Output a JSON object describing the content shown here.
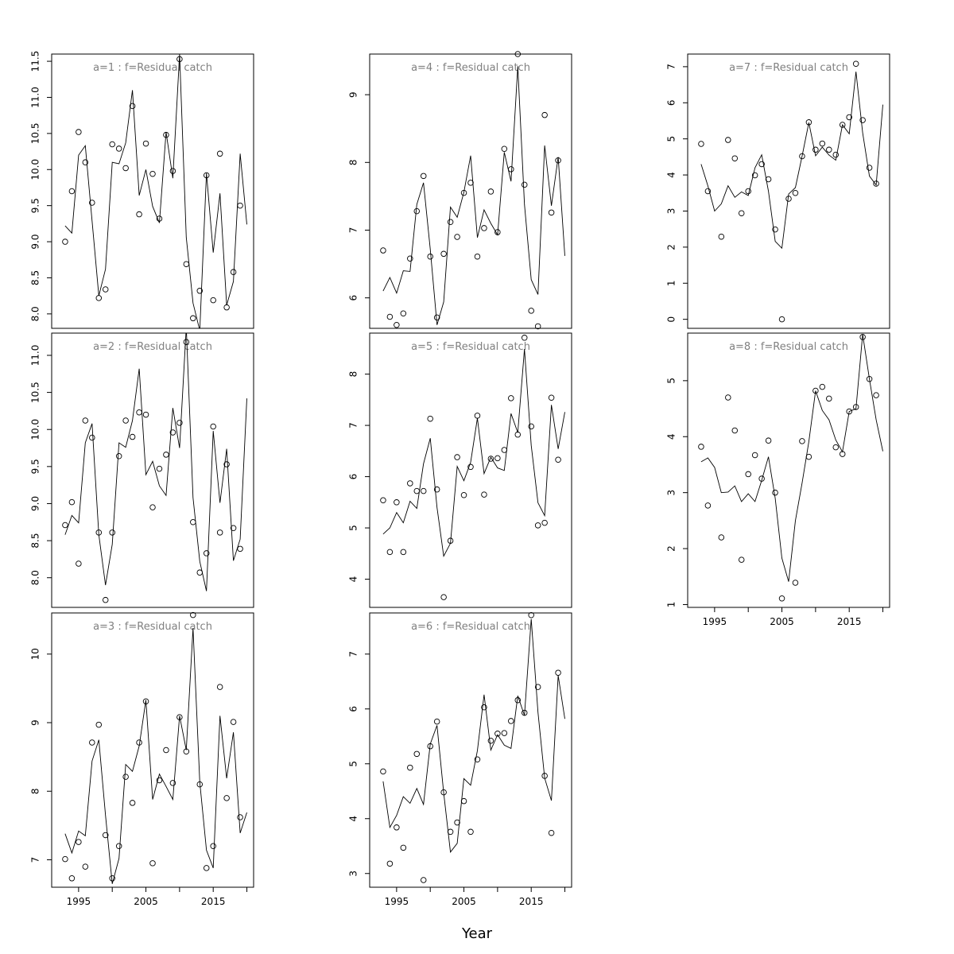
{
  "figure": {
    "xlabel": "Year"
  },
  "chart_data": [
    {
      "type": "line",
      "panel": "a1",
      "title": "a=1  :  f=Residual catch",
      "x_points": [
        1993,
        1994,
        1995,
        1996,
        1997,
        1998,
        1999,
        2000,
        2001,
        2002,
        2003,
        2004,
        2005,
        2006,
        2007,
        2008,
        2009,
        2010,
        2011,
        2012,
        2013,
        2014,
        2015,
        2016,
        2017,
        2018,
        2019
      ],
      "points": [
        9.0,
        9.7,
        10.52,
        10.1,
        9.54,
        8.22,
        8.34,
        10.35,
        10.29,
        10.02,
        10.88,
        9.38,
        10.36,
        9.94,
        9.32,
        10.48,
        9.98,
        11.53,
        8.69,
        7.94,
        8.32,
        9.92,
        8.19,
        10.22,
        8.09,
        8.58,
        9.5
      ],
      "x_line": [
        1993,
        1994,
        1995,
        1996,
        1997,
        1998,
        1999,
        2000,
        2001,
        2002,
        2003,
        2004,
        2005,
        2006,
        2007,
        2008,
        2009,
        2010,
        2011,
        2012,
        2013,
        2014,
        2015,
        2016,
        2017,
        2018,
        2019,
        2020
      ],
      "line": [
        9.22,
        9.12,
        10.2,
        10.33,
        9.29,
        8.25,
        8.62,
        10.1,
        10.08,
        10.37,
        11.1,
        9.64,
        10.0,
        9.49,
        9.26,
        10.52,
        9.88,
        11.6,
        9.06,
        8.15,
        7.77,
        9.95,
        8.85,
        9.67,
        8.12,
        8.45,
        10.22,
        9.24
      ],
      "xlim": [
        1991,
        2021
      ],
      "ylim": [
        7.8,
        11.6
      ],
      "yticks": [
        8.0,
        8.5,
        9.0,
        9.5,
        10.0,
        10.5,
        11.0,
        11.5
      ],
      "ytick_labels": [
        "8.0",
        "8.5",
        "9.0",
        "9.5",
        "10.0",
        "10.5",
        "11.0",
        "11.5"
      ],
      "xticks": [],
      "xtick_labels": []
    },
    {
      "type": "line",
      "panel": "a2",
      "title": "a=2  :  f=Residual catch",
      "x_points": [
        1993,
        1994,
        1995,
        1996,
        1997,
        1998,
        1999,
        2000,
        2001,
        2002,
        2003,
        2004,
        2005,
        2006,
        2007,
        2008,
        2009,
        2010,
        2011,
        2012,
        2013,
        2014,
        2015,
        2016,
        2017,
        2018,
        2019
      ],
      "points": [
        8.71,
        9.02,
        8.19,
        10.12,
        9.89,
        8.61,
        7.7,
        8.61,
        9.64,
        10.12,
        9.9,
        10.23,
        10.2,
        8.95,
        9.47,
        9.66,
        9.96,
        10.09,
        11.18,
        8.75,
        8.07,
        8.33,
        10.04,
        8.61,
        9.53,
        8.67,
        8.39
      ],
      "x_line": [
        1993,
        1994,
        1995,
        1996,
        1997,
        1998,
        1999,
        2000,
        2001,
        2002,
        2003,
        2004,
        2005,
        2006,
        2007,
        2008,
        2009,
        2010,
        2011,
        2012,
        2013,
        2014,
        2015,
        2016,
        2017,
        2018,
        2019,
        2020
      ],
      "line": [
        8.58,
        8.84,
        8.74,
        9.82,
        10.08,
        8.58,
        7.9,
        8.45,
        9.82,
        9.76,
        10.12,
        10.82,
        9.39,
        9.57,
        9.24,
        9.11,
        10.29,
        9.75,
        11.38,
        9.08,
        8.22,
        7.82,
        9.98,
        9.01,
        9.74,
        8.23,
        8.52,
        10.42
      ],
      "xlim": [
        1991,
        2021
      ],
      "ylim": [
        7.6,
        11.3
      ],
      "yticks": [
        8.0,
        8.5,
        9.0,
        9.5,
        10.0,
        10.5,
        11.0
      ],
      "ytick_labels": [
        "8.0",
        "8.5",
        "9.0",
        "9.5",
        "10.0",
        "10.5",
        "11.0"
      ],
      "xticks": [],
      "xtick_labels": []
    },
    {
      "type": "line",
      "panel": "a3",
      "title": "a=3  :  f=Residual catch",
      "x_points": [
        1993,
        1994,
        1995,
        1996,
        1997,
        1998,
        1999,
        2000,
        2001,
        2002,
        2003,
        2004,
        2005,
        2006,
        2007,
        2008,
        2009,
        2010,
        2011,
        2012,
        2013,
        2014,
        2015,
        2016,
        2017,
        2018,
        2019
      ],
      "points": [
        7.01,
        6.73,
        7.26,
        6.9,
        8.71,
        8.97,
        7.36,
        6.73,
        7.2,
        8.21,
        7.83,
        8.71,
        9.31,
        6.95,
        8.16,
        8.6,
        8.12,
        9.08,
        8.58,
        10.57,
        8.1,
        6.88,
        7.2,
        9.52,
        7.9,
        9.01,
        7.62
      ],
      "x_line": [
        1993,
        1994,
        1995,
        1996,
        1997,
        1998,
        1999,
        2000,
        2001,
        2002,
        2003,
        2004,
        2005,
        2006,
        2007,
        2008,
        2009,
        2010,
        2011,
        2012,
        2013,
        2014,
        2015,
        2016,
        2017,
        2018,
        2019,
        2020
      ],
      "line": [
        7.38,
        7.1,
        7.42,
        7.35,
        8.44,
        8.75,
        7.65,
        6.65,
        7.02,
        8.39,
        8.29,
        8.66,
        9.33,
        7.88,
        8.25,
        8.07,
        7.88,
        9.1,
        8.6,
        10.38,
        8.13,
        7.14,
        6.88,
        9.1,
        8.19,
        8.86,
        7.39,
        7.69
      ],
      "xlim": [
        1991,
        2021
      ],
      "ylim": [
        6.6,
        10.6
      ],
      "yticks": [
        7,
        8,
        9,
        10
      ],
      "ytick_labels": [
        "7",
        "8",
        "9",
        "10"
      ],
      "xticks": [
        1995,
        2000,
        2005,
        2010,
        2015,
        2020
      ],
      "xtick_labels": [
        "1995",
        "",
        "2005",
        "",
        "2015",
        ""
      ]
    },
    {
      "type": "line",
      "panel": "a4",
      "title": "a=4  :  f=Residual catch",
      "x_points": [
        1993,
        1994,
        1995,
        1996,
        1997,
        1998,
        1999,
        2000,
        2001,
        2002,
        2003,
        2004,
        2005,
        2006,
        2007,
        2008,
        2009,
        2010,
        2011,
        2012,
        2013,
        2014,
        2015,
        2016,
        2017,
        2018,
        2019
      ],
      "points": [
        6.7,
        5.72,
        5.6,
        5.77,
        6.58,
        7.28,
        7.8,
        6.61,
        5.71,
        6.65,
        7.12,
        6.9,
        7.55,
        7.7,
        6.61,
        7.03,
        7.57,
        6.97,
        8.2,
        7.9,
        9.6,
        7.67,
        5.81,
        5.58,
        8.7,
        7.26,
        8.03
      ],
      "x_line": [
        1993,
        1994,
        1995,
        1996,
        1997,
        1998,
        1999,
        2000,
        2001,
        2002,
        2003,
        2004,
        2005,
        2006,
        2007,
        2008,
        2009,
        2010,
        2011,
        2012,
        2013,
        2014,
        2015,
        2016,
        2017,
        2018,
        2019,
        2020
      ],
      "line": [
        6.1,
        6.3,
        6.07,
        6.4,
        6.39,
        7.38,
        7.7,
        6.72,
        5.6,
        5.94,
        7.34,
        7.19,
        7.56,
        8.1,
        6.89,
        7.3,
        7.1,
        6.93,
        8.15,
        7.72,
        9.42,
        7.38,
        6.27,
        6.05,
        8.25,
        7.36,
        8.08,
        6.62
      ],
      "xlim": [
        1991,
        2021
      ],
      "ylim": [
        5.55,
        9.6
      ],
      "yticks": [
        6,
        7,
        8,
        9
      ],
      "ytick_labels": [
        "6",
        "7",
        "8",
        "9"
      ],
      "xticks": [],
      "xtick_labels": []
    },
    {
      "type": "line",
      "panel": "a5",
      "title": "a=5  :  f=Residual catch",
      "x_points": [
        1993,
        1994,
        1995,
        1996,
        1997,
        1998,
        1999,
        2000,
        2001,
        2002,
        2003,
        2004,
        2005,
        2006,
        2007,
        2008,
        2009,
        2010,
        2011,
        2012,
        2013,
        2014,
        2015,
        2016,
        2017,
        2018,
        2019
      ],
      "points": [
        5.54,
        4.53,
        5.5,
        4.53,
        5.87,
        5.72,
        5.72,
        7.13,
        5.75,
        3.65,
        4.75,
        6.38,
        5.64,
        6.19,
        7.19,
        5.65,
        6.35,
        6.36,
        6.52,
        7.53,
        6.82,
        8.71,
        6.98,
        5.05,
        5.1,
        7.54,
        6.33
      ],
      "x_line": [
        1993,
        1994,
        1995,
        1996,
        1997,
        1998,
        1999,
        2000,
        2001,
        2002,
        2003,
        2004,
        2005,
        2006,
        2007,
        2008,
        2009,
        2010,
        2011,
        2012,
        2013,
        2014,
        2015,
        2016,
        2017,
        2018,
        2019,
        2020
      ],
      "line": [
        4.88,
        5.0,
        5.3,
        5.1,
        5.52,
        5.38,
        6.25,
        6.75,
        5.4,
        4.45,
        4.7,
        6.2,
        5.92,
        6.28,
        7.14,
        6.06,
        6.38,
        6.17,
        6.12,
        7.23,
        6.86,
        8.49,
        6.61,
        5.49,
        5.24,
        7.4,
        6.54,
        7.26
      ],
      "xlim": [
        1991,
        2021
      ],
      "ylim": [
        3.45,
        8.8
      ],
      "yticks": [
        4,
        5,
        6,
        7,
        8
      ],
      "ytick_labels": [
        "4",
        "5",
        "6",
        "7",
        "8"
      ],
      "xticks": [],
      "xtick_labels": []
    },
    {
      "type": "line",
      "panel": "a6",
      "title": "a=6  :  f=Residual catch",
      "x_points": [
        1993,
        1994,
        1995,
        1996,
        1997,
        1998,
        1999,
        2000,
        2001,
        2002,
        2003,
        2004,
        2005,
        2006,
        2007,
        2008,
        2009,
        2010,
        2011,
        2012,
        2013,
        2014,
        2015,
        2016,
        2017,
        2018,
        2019
      ],
      "points": [
        4.86,
        3.18,
        3.84,
        3.47,
        4.93,
        5.18,
        2.88,
        5.32,
        5.77,
        4.48,
        3.76,
        3.93,
        4.32,
        3.76,
        5.08,
        6.03,
        5.42,
        5.55,
        5.56,
        5.78,
        6.16,
        5.93,
        7.71,
        6.4,
        4.78,
        3.74,
        6.66
      ],
      "x_line": [
        1993,
        1994,
        1995,
        1996,
        1997,
        1998,
        1999,
        2000,
        2001,
        2002,
        2003,
        2004,
        2005,
        2006,
        2007,
        2008,
        2009,
        2010,
        2011,
        2012,
        2013,
        2014,
        2015,
        2016,
        2017,
        2018,
        2019,
        2020
      ],
      "line": [
        4.68,
        3.84,
        4.06,
        4.4,
        4.28,
        4.55,
        4.26,
        5.36,
        5.7,
        4.47,
        3.39,
        3.55,
        4.73,
        4.61,
        5.24,
        6.26,
        5.25,
        5.53,
        5.34,
        5.28,
        6.24,
        5.88,
        7.64,
        5.94,
        4.74,
        4.33,
        6.61,
        5.82
      ],
      "xlim": [
        1991,
        2021
      ],
      "ylim": [
        2.75,
        7.75
      ],
      "yticks": [
        3,
        4,
        5,
        6,
        7
      ],
      "ytick_labels": [
        "3",
        "4",
        "5",
        "6",
        "7"
      ],
      "xticks": [
        1995,
        2000,
        2005,
        2010,
        2015,
        2020
      ],
      "xtick_labels": [
        "1995",
        "",
        "2005",
        "",
        "2015",
        ""
      ]
    },
    {
      "type": "line",
      "panel": "a7",
      "title": "a=7  :  f=Residual catch",
      "x_points": [
        1993,
        1994,
        1995,
        1996,
        1997,
        1998,
        1999,
        2000,
        2001,
        2002,
        2003,
        2004,
        2005,
        2006,
        2007,
        2008,
        2009,
        2010,
        2011,
        2012,
        2013,
        2014,
        2015,
        2016,
        2017,
        2018,
        2019
      ],
      "points": [
        4.86,
        3.55,
        2.29,
        4.97,
        4.46,
        2.94,
        3.55,
        3.99,
        4.3,
        3.88,
        2.49,
        0.0,
        3.34,
        3.5,
        4.52,
        5.46,
        4.7,
        4.87,
        4.7,
        4.56,
        5.39,
        5.6,
        7.08,
        5.52,
        4.2,
        3.76
      ],
      "x_line": [
        1993,
        1994,
        1995,
        1996,
        1997,
        1998,
        1999,
        2000,
        2001,
        2002,
        2003,
        2004,
        2005,
        2006,
        2007,
        2008,
        2009,
        2010,
        2011,
        2012,
        2013,
        2014,
        2015,
        2016,
        2017,
        2018,
        2019,
        2020
      ],
      "line": [
        4.3,
        3.7,
        3.0,
        3.2,
        3.7,
        3.38,
        3.53,
        3.43,
        4.2,
        4.56,
        3.55,
        2.16,
        1.97,
        3.47,
        3.65,
        4.52,
        5.45,
        4.53,
        4.77,
        4.55,
        4.41,
        5.39,
        5.14,
        6.86,
        5.17,
        3.97,
        3.72,
        5.95
      ],
      "x_points_override": [
        1993,
        1994,
        1996,
        1997,
        1998,
        1999,
        2000,
        2001,
        2002,
        2003,
        2004,
        2005,
        2006,
        2007,
        2008,
        2009,
        2010,
        2011,
        2012,
        2013,
        2014,
        2015,
        2016,
        2017,
        2018,
        2019
      ],
      "xlim": [
        1991,
        2021
      ],
      "ylim": [
        -0.25,
        7.35
      ],
      "yticks": [
        0,
        1,
        2,
        3,
        4,
        5,
        6,
        7
      ],
      "ytick_labels": [
        "0",
        "1",
        "2",
        "3",
        "4",
        "5",
        "6",
        "7"
      ],
      "xticks": [],
      "xtick_labels": []
    },
    {
      "type": "line",
      "panel": "a8",
      "title": "a=8  :  f=Residual catch",
      "x_points": [
        1993,
        1994,
        1996,
        1997,
        1998,
        1999,
        2000,
        2001,
        2002,
        2003,
        2004,
        2005,
        2007,
        2008,
        2009,
        2010,
        2011,
        2012,
        2013,
        2014,
        2015,
        2016,
        2017,
        2018,
        2019
      ],
      "points": [
        3.82,
        2.77,
        2.2,
        4.7,
        4.11,
        1.8,
        3.33,
        3.67,
        3.25,
        3.93,
        3.0,
        1.11,
        1.39,
        3.92,
        3.64,
        4.82,
        4.89,
        4.68,
        3.81,
        3.69,
        4.45,
        4.53,
        5.78,
        5.03,
        4.74
      ],
      "x_line": [
        1993,
        1994,
        1995,
        1996,
        1997,
        1998,
        1999,
        2000,
        2001,
        2002,
        2003,
        2004,
        2005,
        2006,
        2007,
        2008,
        2009,
        2010,
        2011,
        2012,
        2013,
        2014,
        2015,
        2016,
        2017,
        2018,
        2019,
        2020
      ],
      "line": [
        3.55,
        3.62,
        3.45,
        3.0,
        3.01,
        3.12,
        2.84,
        2.98,
        2.84,
        3.22,
        3.64,
        2.9,
        1.83,
        1.41,
        2.5,
        3.17,
        3.91,
        4.82,
        4.47,
        4.3,
        3.94,
        3.73,
        4.45,
        4.5,
        5.83,
        5.03,
        4.3,
        3.74
      ],
      "xlim": [
        1991,
        2021
      ],
      "ylim": [
        0.95,
        5.85
      ],
      "yticks": [
        1,
        2,
        3,
        4,
        5
      ],
      "ytick_labels": [
        "1",
        "2",
        "3",
        "4",
        "5"
      ],
      "xticks": [
        1995,
        2000,
        2005,
        2010,
        2015,
        2020
      ],
      "xtick_labels": [
        "1995",
        "",
        "2005",
        "",
        "2015",
        ""
      ]
    }
  ]
}
